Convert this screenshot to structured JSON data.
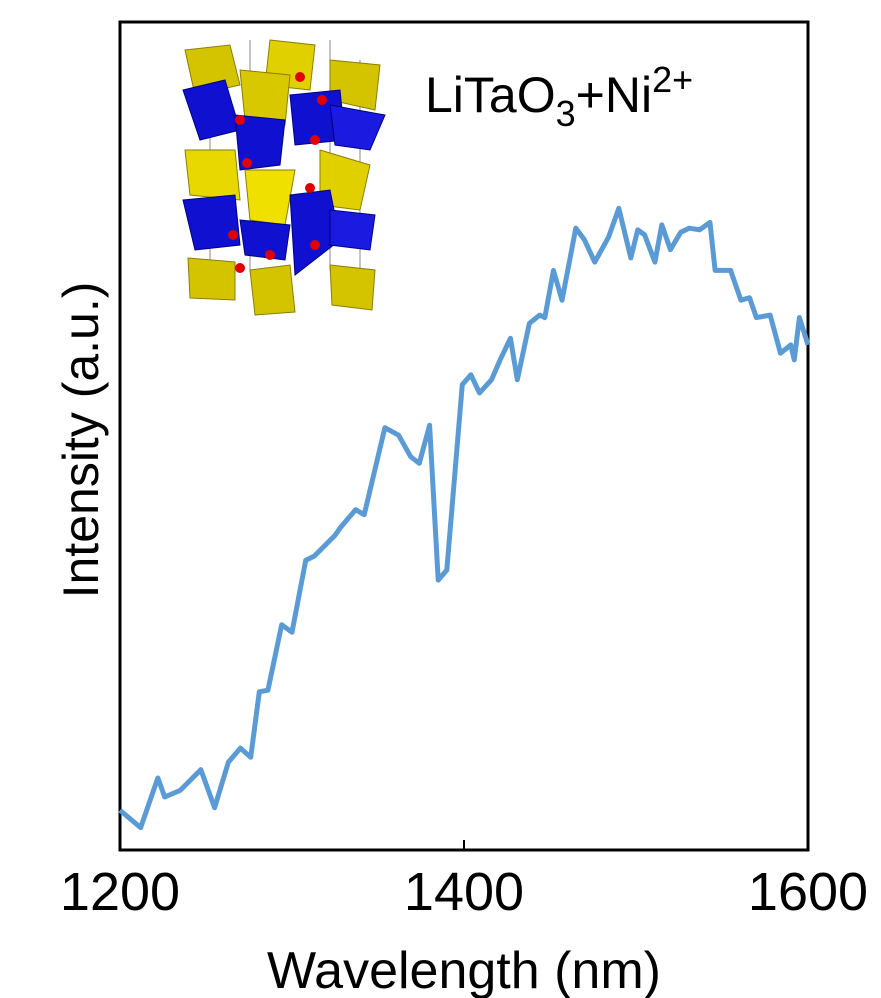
{
  "chart_data": {
    "type": "line",
    "annotation": [
      "LiTaO",
      "3",
      "+Ni",
      "2+"
    ],
    "x_label": "Wavelength (nm)",
    "y_label": "Intensity (a.u.)",
    "xlim": [
      1200,
      1600
    ],
    "xticks": [
      1200,
      1400,
      1600
    ],
    "ylim": [
      0,
      100
    ],
    "series": [
      {
        "color": "#5b9bd5",
        "x": [
          1200,
          1212,
          1222,
          1226,
          1235,
          1247,
          1255,
          1263,
          1270,
          1276,
          1281,
          1286,
          1294,
          1300,
          1308,
          1313,
          1325,
          1328,
          1337,
          1342,
          1354,
          1362,
          1369,
          1374,
          1380,
          1385,
          1390,
          1399,
          1404,
          1409,
          1416,
          1421,
          1427,
          1431,
          1438,
          1444,
          1447,
          1452,
          1457,
          1465,
          1470,
          1476,
          1484,
          1490,
          1497,
          1501,
          1505,
          1511,
          1515,
          1520,
          1526,
          1531,
          1537,
          1543,
          1546,
          1555,
          1561,
          1566,
          1570,
          1578,
          1584,
          1590,
          1592,
          1595,
          1600
        ],
        "values": [
          4.8,
          2.7,
          8.7,
          6.4,
          7.2,
          9.7,
          5.1,
          10.6,
          12.3,
          11.2,
          19.1,
          19.3,
          27.2,
          26.3,
          35.0,
          35.5,
          38.0,
          38.9,
          41.1,
          40.5,
          51.0,
          50.1,
          47.5,
          46.7,
          51.3,
          32.6,
          33.8,
          56.2,
          57.4,
          55.2,
          56.8,
          59.2,
          61.8,
          56.8,
          63.6,
          64.6,
          64.3,
          70.0,
          66.4,
          75.1,
          73.7,
          71.0,
          74.0,
          77.5,
          71.5,
          74.9,
          74.3,
          71.0,
          75.5,
          72.5,
          74.6,
          75.1,
          74.9,
          75.8,
          70.0,
          70.0,
          66.4,
          66.7,
          64.3,
          64.6,
          60.0,
          61.0,
          59.2,
          64.3,
          61.0
        ]
      }
    ]
  }
}
